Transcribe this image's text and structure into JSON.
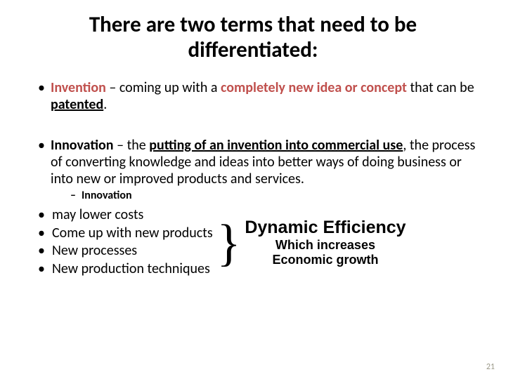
{
  "title_line1": "There are two terms that need to be",
  "title_line2": "differentiated:",
  "title_fontsize": 31,
  "body_fontsize": 20,
  "sub_fontsize": 16,
  "lower_fontsize": 20,
  "brace_fontsize": 70,
  "dyn_title_fontsize": 25,
  "dyn_sub_fontsize": 18,
  "pagenum_fontsize": 12,
  "accent_color": "#c0504d",
  "text_color": "#000000",
  "page_number": "21",
  "bullet1_term": "Invention",
  "bullet1_sep": " – ",
  "bullet1_mid": "coming up with a ",
  "bullet1_bold_a": "completely new idea or concept",
  "bullet1_tail1": " that can be ",
  "bullet1_tail_bold": "patented",
  "bullet1_period": ".",
  "bullet2_term": "Innovation",
  "bullet2_sep": " – ",
  "bullet2_pre": "the ",
  "bullet2_u_bold": "putting of an invention into commercial use",
  "bullet2_tail": ", the process of converting knowledge and ideas into better ways of doing business or into new or improved products and services.",
  "sub_dash": "–",
  "sub_label": "Innovation",
  "lower_items": {
    "0": "may lower costs",
    "1": "Come up with new products",
    "2": "New processes",
    "3": "New production techniques"
  },
  "brace_char": "}",
  "dyn_title": "Dynamic Efficiency",
  "dyn_sub_a": "Which increases",
  "dyn_sub_b": "Economic growth"
}
